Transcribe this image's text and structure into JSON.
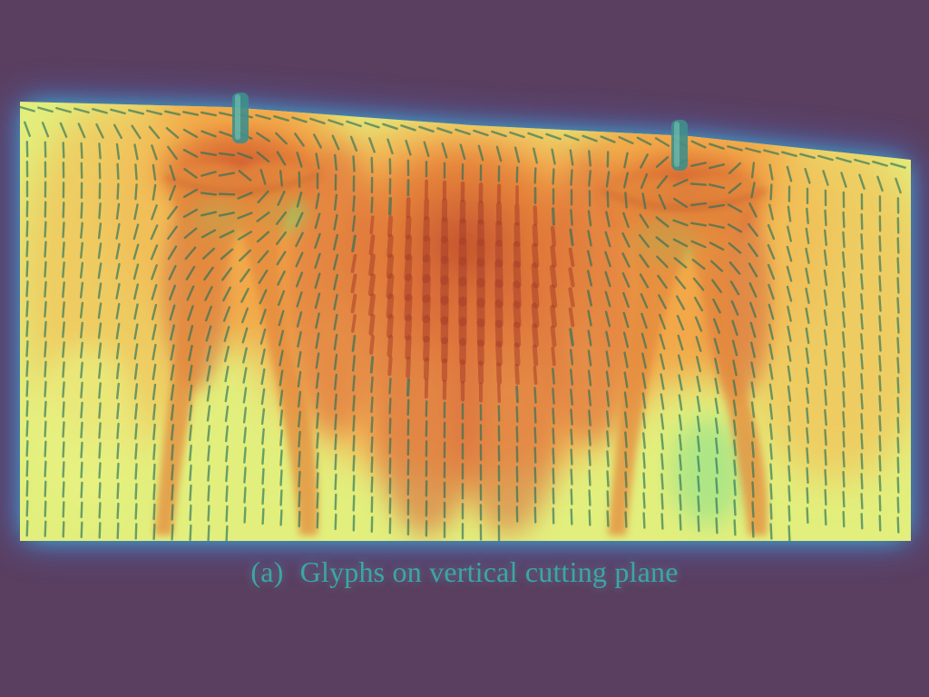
{
  "figure": {
    "caption_label": "(a)",
    "caption_text": "Glyphs on vertical cutting plane",
    "colors": {
      "background": "#5a3f60",
      "halo_outer": "#4a7de8",
      "halo_mid": "#36d9d2",
      "field_low": "#e3f07a",
      "field_mid": "#f4a33e",
      "field_high": "#c9552f",
      "glyph": "#1f6f5a",
      "caption": "#3aa7a6"
    }
  }
}
